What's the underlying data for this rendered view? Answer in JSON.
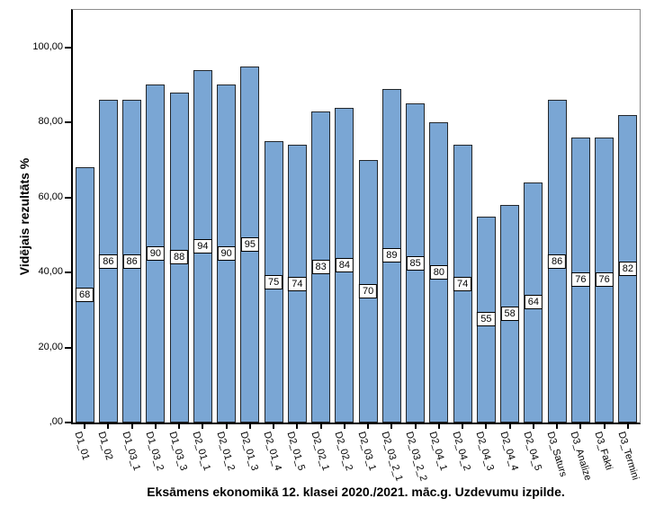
{
  "chart_data": {
    "type": "bar",
    "title": "Eksāmens ekonomikā 12. klasei 2020./2021. māc.g. Uzdevumu izpilde.",
    "ylabel": "Vidējais rezultāts %",
    "xlabel": "",
    "categories": [
      "D1_01",
      "D1_02",
      "D1_03_1",
      "D1_03_2",
      "D1_03_3",
      "D2_01_1",
      "D2_01_2",
      "D2_01_3",
      "D2_01_4",
      "D2_01_5",
      "D2_02_1",
      "D2_02_2",
      "D2_03_1",
      "D2_03_2_1",
      "D2_03_2_2",
      "D2_04_1",
      "D2_04_2",
      "D2_04_3",
      "D2_04_4",
      "D2_04_5",
      "D3_Saturs",
      "D3_Analize",
      "D3_Fakti",
      "D3_Termini"
    ],
    "values": [
      68,
      86,
      86,
      90,
      88,
      94,
      90,
      95,
      75,
      74,
      83,
      84,
      70,
      89,
      85,
      80,
      74,
      55,
      58,
      64,
      86,
      76,
      76,
      82
    ],
    "value_labels": [
      "68",
      "86",
      "86",
      "90",
      "88",
      "94",
      "90",
      "95",
      "75",
      "74",
      "83",
      "84",
      "70",
      "89",
      "85",
      "80",
      "74",
      "55",
      "58",
      "64",
      "86",
      "76",
      "76",
      "82"
    ],
    "ylim": [
      0,
      110
    ],
    "yticks": [
      0,
      20,
      40,
      60,
      80,
      100
    ],
    "ytick_labels": [
      ",00",
      "20,00",
      "40,00",
      "60,00",
      "80,00",
      "100,00"
    ],
    "grid": false,
    "legend_position": "none",
    "bar_color": "#7AA6D4",
    "bar_border_color": "#23272b",
    "frame_color": "#8c8c8c",
    "axis_color": "#000000"
  }
}
